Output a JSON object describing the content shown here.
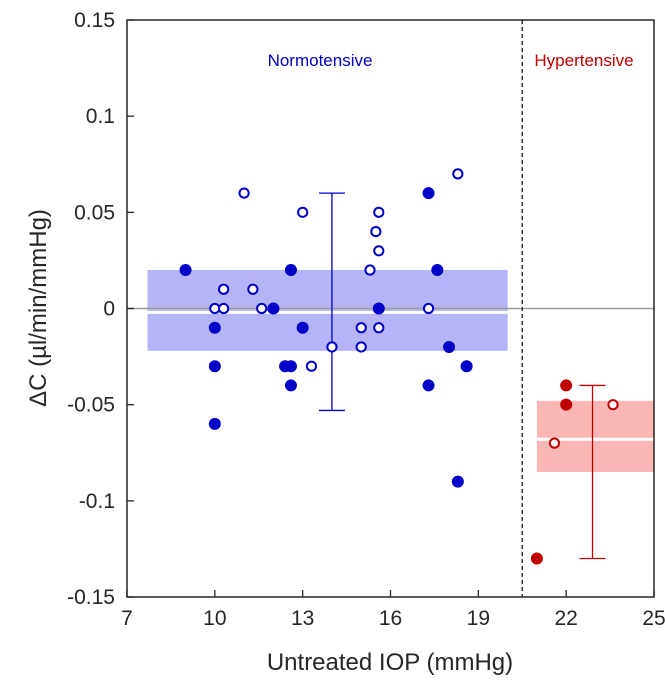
{
  "chart_data": {
    "type": "scatter",
    "xlabel": "Untreated IOP (mmHg)",
    "ylabel": "ΔC (µl/min/mmHg)",
    "xlim": [
      7,
      25
    ],
    "ylim": [
      -0.15,
      0.15
    ],
    "x_ticks": [
      "7",
      "10",
      "13",
      "16",
      "19",
      "22",
      "25"
    ],
    "y_ticks": [
      "-0.15",
      "-0.1",
      "-0.05",
      "0",
      "0.05",
      "0.1",
      "0.15"
    ],
    "group_divider_x": 20.5,
    "reference_line_y": 0,
    "colors": {
      "normotensive": "#0000c8",
      "hypertensive": "#c00000",
      "normo_band": "#b4b4f6",
      "hyper_band": "#fbb6b6"
    },
    "groups": [
      {
        "label": "Normotensive",
        "color": "#0000c8",
        "band_fill": "#b4b4f6",
        "band": {
          "x_from": 7.7,
          "x_to": 20.0,
          "y_low": -0.022,
          "y_high": 0.02,
          "mean": -0.002
        },
        "whisker": {
          "x": 14,
          "y_low": -0.053,
          "y_high": 0.06
        },
        "filled_points": [
          [
            9,
            0.02
          ],
          [
            10,
            -0.01
          ],
          [
            10,
            -0.03
          ],
          [
            10,
            -0.06
          ],
          [
            12,
            0
          ],
          [
            12.4,
            -0.03
          ],
          [
            12.6,
            -0.03
          ],
          [
            12.6,
            -0.04
          ],
          [
            12.6,
            0.02
          ],
          [
            13,
            -0.01
          ],
          [
            15.6,
            0
          ],
          [
            17.3,
            0.06
          ],
          [
            17.3,
            -0.04
          ],
          [
            17.6,
            0.02
          ],
          [
            18,
            -0.02
          ],
          [
            18.3,
            -0.09
          ],
          [
            18.6,
            -0.03
          ]
        ],
        "open_points": [
          [
            10,
            0
          ],
          [
            10.3,
            0
          ],
          [
            10.3,
            0.01
          ],
          [
            11,
            0.06
          ],
          [
            11.3,
            0.01
          ],
          [
            11.6,
            0
          ],
          [
            13,
            0.05
          ],
          [
            13.3,
            -0.03
          ],
          [
            14,
            -0.02
          ],
          [
            15,
            -0.01
          ],
          [
            15,
            -0.02
          ],
          [
            15.3,
            0.02
          ],
          [
            15.5,
            0.04
          ],
          [
            15.6,
            0.05
          ],
          [
            15.6,
            0.03
          ],
          [
            15.6,
            -0.01
          ],
          [
            17.3,
            0
          ],
          [
            18.3,
            0.07
          ]
        ]
      },
      {
        "label": "Hypertensive",
        "color": "#c00000",
        "band_fill": "#fbb6b6",
        "band": {
          "x_from": 21.0,
          "x_to": 25.0,
          "y_low": -0.085,
          "y_high": -0.048,
          "mean": -0.068
        },
        "whisker": {
          "x": 22.9,
          "y_low": -0.13,
          "y_high": -0.04
        },
        "filled_points": [
          [
            21,
            -0.13
          ],
          [
            22,
            -0.04
          ],
          [
            22,
            -0.05
          ]
        ],
        "open_points": [
          [
            21.6,
            -0.07
          ],
          [
            23.6,
            -0.05
          ]
        ]
      }
    ]
  }
}
